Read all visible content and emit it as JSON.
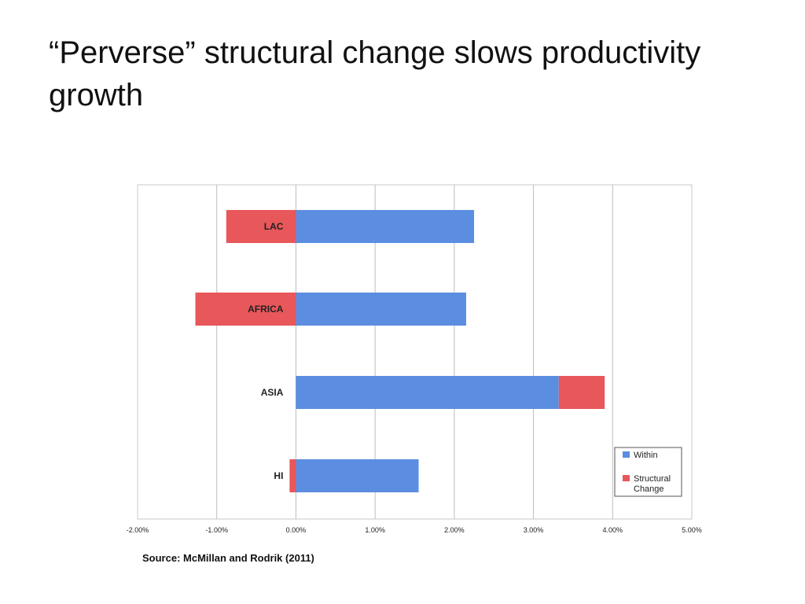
{
  "slide": {
    "title": "“Perverse” structural change slows productivity growth",
    "source": "Source: McMillan and Rodrik (2011)"
  },
  "colors": {
    "within": "#5B8DE0",
    "structural": "#E8575A"
  },
  "chart_data": {
    "type": "bar",
    "orientation": "horizontal",
    "stacked": true,
    "title": "",
    "xlabel": "",
    "ylabel": "",
    "categories": [
      "LAC",
      "AFRICA",
      "ASIA",
      "HI"
    ],
    "series": [
      {
        "name": "Within",
        "values": [
          2.25,
          2.15,
          3.32,
          1.55
        ]
      },
      {
        "name": "Structural Change",
        "values": [
          -0.88,
          -1.27,
          0.58,
          -0.08
        ]
      }
    ],
    "xlim": [
      -2.0,
      5.0
    ],
    "xticks": [
      "-2.00%",
      "-1.00%",
      "0.00%",
      "1.00%",
      "2.00%",
      "3.00%",
      "4.00%",
      "5.00%"
    ],
    "grid": "vertical",
    "legend": {
      "position": "bottom-right",
      "entries": [
        "Within",
        "Structural Change"
      ]
    }
  }
}
